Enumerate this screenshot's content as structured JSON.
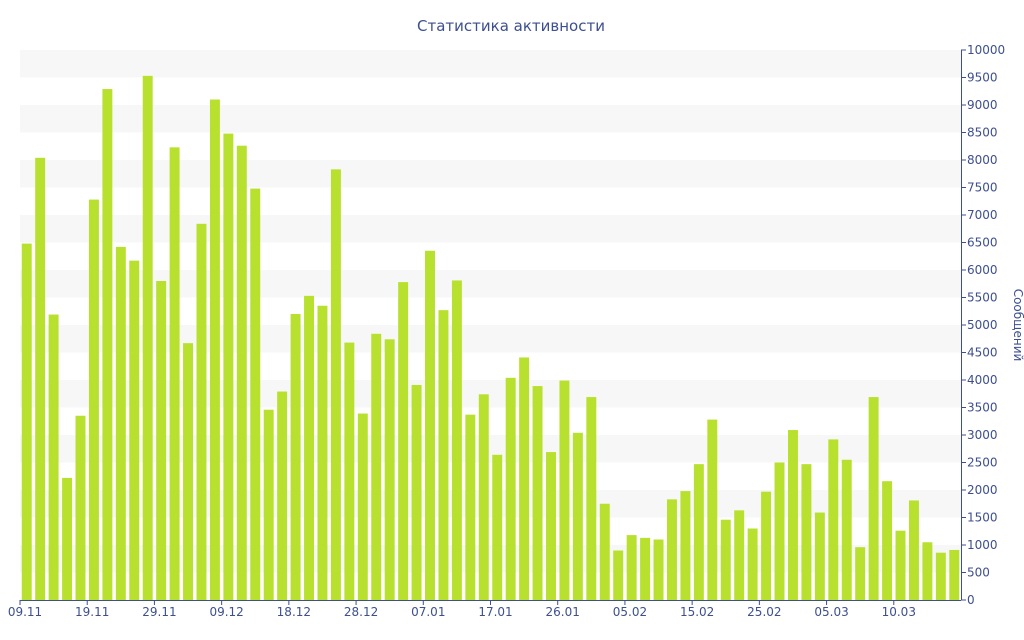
{
  "chart_data": {
    "type": "bar",
    "title": "Статистика активности",
    "xlabel": "",
    "ylabel": "Сообщений",
    "y_axis_side": "right",
    "ylim": [
      0,
      10000
    ],
    "yticks": [
      0,
      500,
      1000,
      1500,
      2000,
      2500,
      3000,
      3500,
      4000,
      4500,
      5000,
      5500,
      6000,
      6500,
      7000,
      7500,
      8000,
      8500,
      9000,
      9500,
      10000
    ],
    "grid": "alternating horizontal bands",
    "colors": {
      "bar": "#b8e02e",
      "band": "#f7f7f7",
      "text": "#3d4f8f",
      "axis": "#3d4f8f"
    },
    "x_tick_labels": [
      {
        "label": "09.11",
        "index": 0
      },
      {
        "label": "19.11",
        "index": 5
      },
      {
        "label": "29.11",
        "index": 10
      },
      {
        "label": "09.12",
        "index": 15
      },
      {
        "label": "18.12",
        "index": 20
      },
      {
        "label": "28.12",
        "index": 25
      },
      {
        "label": "07.01",
        "index": 30
      },
      {
        "label": "17.01",
        "index": 35
      },
      {
        "label": "26.01",
        "index": 40
      },
      {
        "label": "05.02",
        "index": 45
      },
      {
        "label": "15.02",
        "index": 50
      },
      {
        "label": "25.02",
        "index": 55
      },
      {
        "label": "05.03",
        "index": 60
      },
      {
        "label": "10.03",
        "index": 65
      }
    ],
    "values": [
      6480,
      8040,
      5190,
      2220,
      3350,
      7280,
      9290,
      6420,
      6170,
      9530,
      5800,
      8230,
      4670,
      6840,
      9100,
      8480,
      8260,
      7480,
      3460,
      3790,
      5200,
      5530,
      5350,
      7830,
      4680,
      3390,
      4840,
      4740,
      5780,
      3910,
      6350,
      5270,
      5810,
      3370,
      3740,
      2640,
      4040,
      4410,
      3890,
      2690,
      3990,
      3040,
      3690,
      1750,
      900,
      1180,
      1130,
      1100,
      1830,
      1980,
      2470,
      3280,
      1460,
      1630,
      1300,
      1970,
      2500,
      3090,
      2470,
      1590,
      2920,
      2550,
      960,
      3690,
      2160,
      1260,
      1810,
      1050,
      860,
      910
    ]
  }
}
